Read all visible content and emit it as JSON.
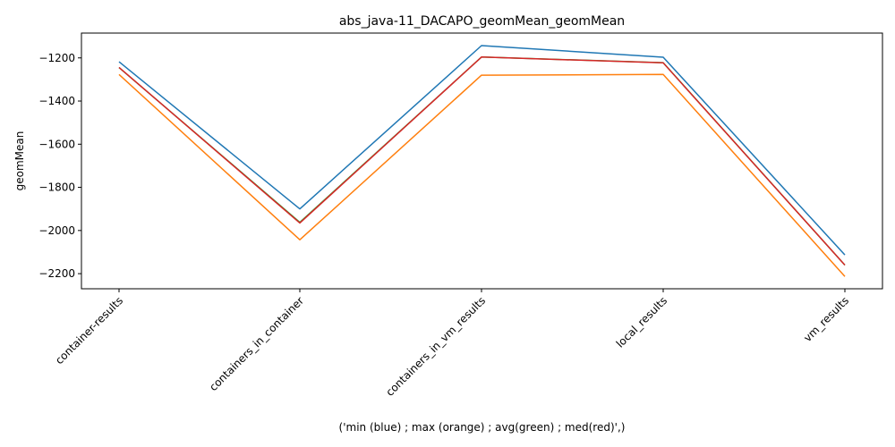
{
  "chart_data": {
    "type": "line",
    "title": "abs_java-11_DACAPO_geomMean_geomMean",
    "xlabel": "('min (blue) ; max (orange) ; avg(green) ; med(red)',)",
    "ylabel": "geomMean",
    "categories": [
      "container-results",
      "containers_in_container",
      "containers_in_vm_results",
      "local_results",
      "vm_results"
    ],
    "yticks": [
      -2200,
      -2000,
      -1800,
      -1600,
      -1400,
      -1200
    ],
    "ylim": [
      -2270,
      -1085
    ],
    "grid": false,
    "series": [
      {
        "color": "#1f77b4",
        "values": [
          -1218,
          -1900,
          -1143,
          -1197,
          -2113
        ]
      },
      {
        "color": "#ff7f0e",
        "values": [
          -1277,
          -2043,
          -1280,
          -1277,
          -2213
        ]
      },
      {
        "color": "#2ca02c",
        "values": [
          -1245,
          -1962,
          -1196,
          -1222,
          -2160
        ]
      },
      {
        "color": "#d62728",
        "values": [
          -1244,
          -1965,
          -1196,
          -1223,
          -2160
        ]
      }
    ]
  }
}
